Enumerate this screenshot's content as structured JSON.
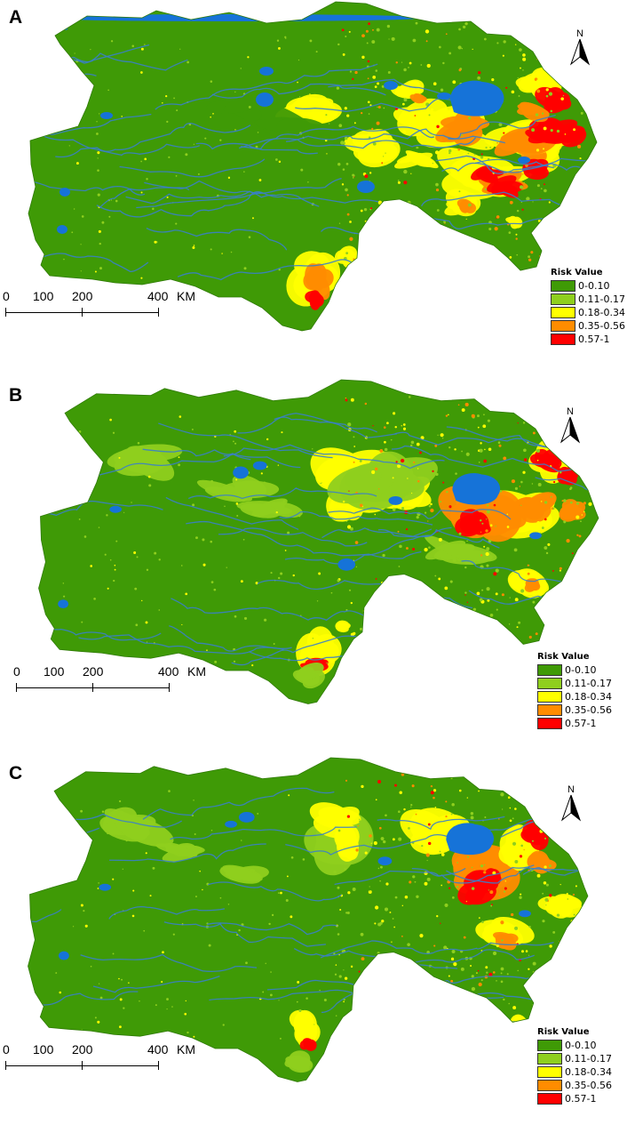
{
  "colors": {
    "class_0": "#3f9a06",
    "class_1": "#8fcf1e",
    "class_2": "#ffff00",
    "class_3": "#ff8c00",
    "class_4": "#ff0000",
    "water": "#1673d8",
    "river": "#3a7fc9"
  },
  "legend": {
    "title": "Risk Value",
    "items": [
      "0-0.10",
      "0.11-0.17",
      "0.18-0.34",
      "0.35-0.56",
      "0.57-1"
    ]
  },
  "scalebar": {
    "labels": [
      "0",
      "100",
      "200",
      "400"
    ],
    "unit": "KM"
  },
  "north_label": "N",
  "panels": [
    {
      "label": "A",
      "map": "risk-map-a"
    },
    {
      "label": "B",
      "map": "risk-map-b"
    },
    {
      "label": "C",
      "map": "risk-map-c"
    }
  ]
}
